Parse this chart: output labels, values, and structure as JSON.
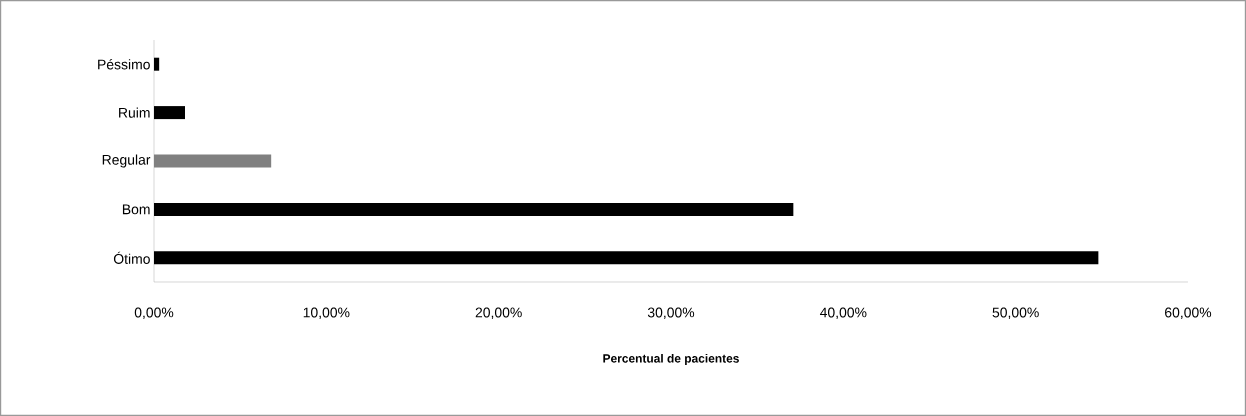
{
  "chart_data": {
    "type": "bar",
    "orientation": "horizontal",
    "xlabel": "**Percentual de pacientes**",
    "categories": [
      "Péssimo",
      "Ruim",
      "Regular",
      "Bom",
      "Ótimo"
    ],
    "values": [
      0.3,
      1.8,
      6.8,
      37.1,
      54.8
    ],
    "colors": [
      "#000000",
      "#000000",
      "#808080",
      "#000000",
      "#000000"
    ],
    "xlim": [
      0,
      60
    ],
    "xticks": [
      {
        "value": 0,
        "label": "0,00%"
      },
      {
        "value": 10,
        "label": "10,00%"
      },
      {
        "value": 20,
        "label": "20,00%"
      },
      {
        "value": 30,
        "label": "30,00%"
      },
      {
        "value": 40,
        "label": "40,00%"
      },
      {
        "value": 50,
        "label": "50,00%"
      },
      {
        "value": 60,
        "label": "60,00%"
      }
    ],
    "grid": false
  }
}
